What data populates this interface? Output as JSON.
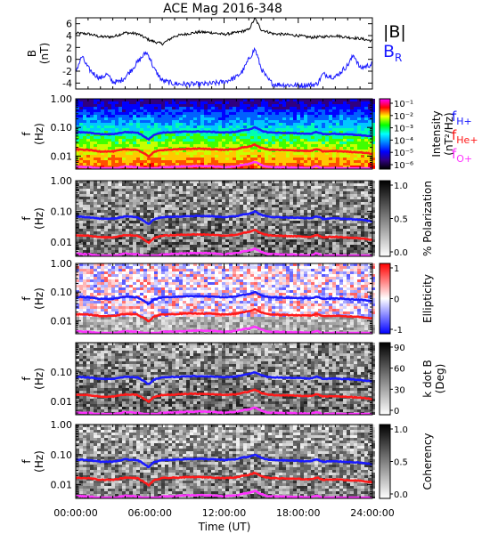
{
  "title": "ACE Mag 2016-348",
  "chart_data": [
    {
      "type": "line",
      "title": "ACE Mag 2016-348",
      "ylabel": "B",
      "yunit": "(nT)",
      "ylim": [
        -5,
        7
      ],
      "yticks": [
        "6",
        "4",
        "2",
        "0",
        "-2",
        "-4"
      ],
      "ytick_values": [
        6,
        4,
        2,
        0,
        -2,
        -4
      ],
      "xlim_hours": [
        0,
        24
      ],
      "series": [
        {
          "name": "|B|",
          "color": "#000000",
          "x": [
            0,
            1,
            2,
            3,
            4,
            5,
            6,
            7,
            8,
            9,
            10,
            11,
            12,
            13,
            14,
            14.5,
            15,
            16,
            17,
            18,
            19,
            20,
            21,
            22,
            23,
            24
          ],
          "values": [
            4.4,
            4.3,
            3.8,
            3.8,
            4.5,
            4.3,
            3.2,
            2.6,
            3.9,
            4.3,
            4.6,
            4.5,
            4.2,
            4.5,
            5.0,
            6.9,
            5.0,
            4.3,
            4.2,
            4.0,
            3.7,
            3.8,
            4.0,
            3.7,
            3.5,
            3.1
          ]
        },
        {
          "name": "B",
          "sub": "R",
          "color": "#1a1aff",
          "x": [
            0,
            0.5,
            1,
            1.5,
            2,
            2.5,
            3,
            3.5,
            4,
            5,
            5.7,
            6,
            6.3,
            7,
            8,
            9,
            10,
            11,
            12,
            13,
            13.5,
            14,
            14.5,
            15,
            15.5,
            16,
            17,
            18,
            19,
            19.5,
            20,
            21,
            22,
            22.5,
            23,
            24
          ],
          "values": [
            -2.0,
            0.5,
            -1.5,
            -2.5,
            -3.2,
            -2.5,
            -3.8,
            -3.8,
            -3.0,
            -0.5,
            1.2,
            0.3,
            -1.5,
            -3.6,
            -4.1,
            -4.2,
            -4.2,
            -4.1,
            -3.8,
            -3.0,
            -2.0,
            0.0,
            1.8,
            -1.5,
            -3.3,
            -4.2,
            -4.3,
            -4.4,
            -4.3,
            -4.2,
            -2.5,
            -3.0,
            -1.0,
            0.8,
            -1.5,
            -0.8
          ]
        }
      ]
    },
    {
      "type": "heatmap",
      "ylabel": "f",
      "yunit": "(Hz)",
      "yscale": "log",
      "ylim": [
        0.0035,
        1.0
      ],
      "yticks": [
        "1.00",
        "0.10",
        "0.01"
      ],
      "ytick_values": [
        1.0,
        0.1,
        0.01
      ],
      "colorbar_label": "Intensity",
      "colorbar_unit": "(nT²/Hz)",
      "colorbar_ticks": [
        "10⁻¹",
        "10⁻²",
        "10⁻³",
        "10⁻⁴",
        "10⁻⁵",
        "10⁻⁶"
      ],
      "colorbar_colors": [
        "#ff00ff",
        "#ff0000",
        "#ffff00",
        "#00ff00",
        "#00ffff",
        "#0080ff",
        "#0000ff",
        "#300080",
        "#000000"
      ]
    },
    {
      "type": "heatmap",
      "ylabel": "f",
      "yunit": "(Hz)",
      "yscale": "log",
      "ylim": [
        0.0035,
        1.0
      ],
      "yticks": [
        "1.00",
        "0.10",
        "0.01"
      ],
      "ytick_values": [
        1.0,
        0.1,
        0.01
      ],
      "colorbar_label": "% Polarization",
      "colorbar_ticks": [
        "1.0",
        "0.5",
        "0.0"
      ],
      "colorbar_colors": [
        "#000000",
        "#ffffff"
      ]
    },
    {
      "type": "heatmap",
      "ylabel": "f",
      "yunit": "(Hz)",
      "yscale": "log",
      "ylim": [
        0.0035,
        1.0
      ],
      "yticks": [
        "1.00",
        "0.10",
        "0.01"
      ],
      "ytick_values": [
        1.0,
        0.1,
        0.01
      ],
      "colorbar_label": "Ellipticity",
      "colorbar_ticks": [
        "1",
        "0",
        "-1"
      ],
      "colorbar_colors": [
        "#ff0000",
        "#ffffff",
        "#0000ff"
      ]
    },
    {
      "type": "heatmap",
      "ylabel": "f",
      "yunit": "(Hz)",
      "yscale": "log",
      "ylim": [
        0.0035,
        1.0
      ],
      "yticks": [
        "0.10",
        "0.01"
      ],
      "ytick_values": [
        0.1,
        0.01
      ],
      "colorbar_label": "k dot B",
      "colorbar_unit": "(Deg)",
      "colorbar_ticks": [
        "90",
        "60",
        "30",
        "0"
      ],
      "colorbar_colors": [
        "#000000",
        "#ffffff"
      ]
    },
    {
      "type": "heatmap",
      "ylabel": "f",
      "yunit": "(Hz)",
      "yscale": "log",
      "ylim": [
        0.0035,
        1.0
      ],
      "yticks": [
        "1.00",
        "0.10",
        "0.01"
      ],
      "ytick_values": [
        1.0,
        0.1,
        0.01
      ],
      "colorbar_label": "Coherency",
      "colorbar_ticks": [
        "1.0",
        "0.5",
        "0.0"
      ],
      "colorbar_colors": [
        "#000000",
        "#ffffff"
      ]
    }
  ],
  "gyro_lines": {
    "x": [
      0,
      1,
      2,
      3,
      4,
      5,
      5.6,
      5.9,
      6.3,
      7,
      8,
      9,
      10,
      11,
      12,
      13,
      13.5,
      14,
      14.5,
      15,
      15.5,
      16,
      17,
      18,
      19,
      19.5,
      20,
      21,
      22,
      23,
      24
    ],
    "series": [
      {
        "name": "f",
        "sub": "H+",
        "color": "#1a1aff",
        "values": [
          0.068,
          0.066,
          0.058,
          0.058,
          0.069,
          0.066,
          0.047,
          0.038,
          0.055,
          0.066,
          0.068,
          0.071,
          0.072,
          0.07,
          0.066,
          0.07,
          0.08,
          0.085,
          0.1,
          0.078,
          0.068,
          0.066,
          0.064,
          0.062,
          0.06,
          0.07,
          0.058,
          0.06,
          0.057,
          0.054,
          0.048
        ]
      },
      {
        "name": "f",
        "sub": "He+",
        "color": "#ff1a1a",
        "values": [
          0.017,
          0.0165,
          0.0145,
          0.0145,
          0.0172,
          0.0165,
          0.0118,
          0.0095,
          0.0138,
          0.0165,
          0.017,
          0.0178,
          0.018,
          0.0175,
          0.0165,
          0.0175,
          0.02,
          0.0212,
          0.025,
          0.0195,
          0.017,
          0.0165,
          0.016,
          0.0155,
          0.015,
          0.0175,
          0.0145,
          0.015,
          0.0142,
          0.0135,
          0.012
        ]
      },
      {
        "name": "f",
        "sub": "O+",
        "color": "#ff33ff",
        "values": [
          0.0042,
          0.0041,
          0.0036,
          0.0036,
          0.0043,
          0.0041,
          0.0035,
          0.0035,
          0.0035,
          0.0041,
          0.0042,
          0.0044,
          0.0045,
          0.0044,
          0.0041,
          0.0044,
          0.005,
          0.0053,
          0.0062,
          0.0049,
          0.0042,
          0.0041,
          0.004,
          0.0039,
          0.0038,
          0.0044,
          0.0036,
          0.0038,
          0.0036,
          0.0035,
          0.0035
        ]
      }
    ]
  },
  "xaxis": {
    "label": "Time (UT)",
    "ticks": [
      "00:00:00",
      "06:00:00",
      "12:00:00",
      "18:00:00",
      "24:00:00"
    ],
    "tick_hours": [
      0,
      6,
      12,
      18,
      24
    ]
  }
}
